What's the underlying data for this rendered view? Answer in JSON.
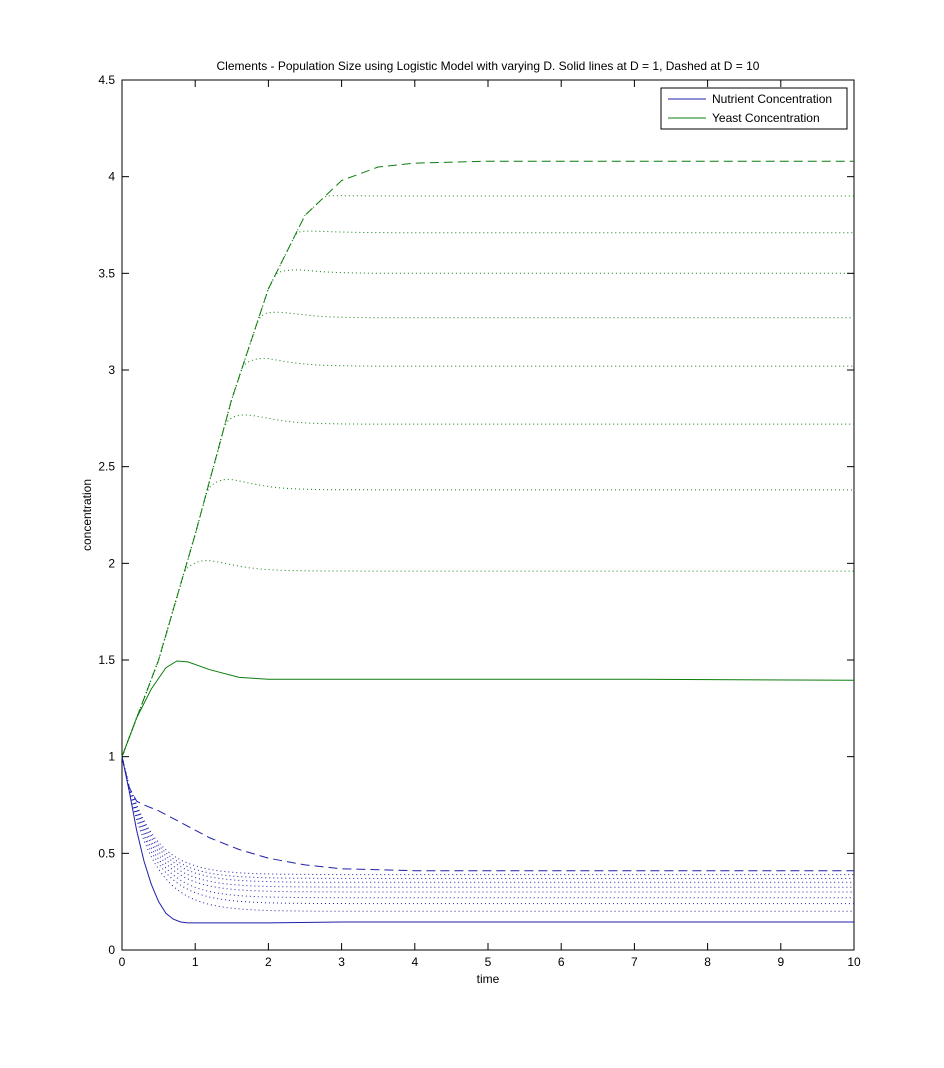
{
  "chart_data": {
    "type": "line",
    "title": "Clements - Population Size using Logistic Model with varying D. Solid lines at D = 1, Dashed at D = 10",
    "xlabel": "time",
    "ylabel": "concentration",
    "xlim": [
      0,
      10
    ],
    "ylim": [
      0,
      4.5
    ],
    "xticks": [
      "0",
      "1",
      "2",
      "3",
      "4",
      "5",
      "6",
      "7",
      "8",
      "9",
      "10"
    ],
    "yticks": [
      "0",
      "0.5",
      "1",
      "1.5",
      "2",
      "2.5",
      "3",
      "3.5",
      "4",
      "4.5"
    ],
    "grid": false,
    "legend_position": "top-right",
    "legend": [
      {
        "label": "Nutrient Concentration",
        "color": "#1f1fa8"
      },
      {
        "label": "Yeast Concentration",
        "color": "#0c7d0c"
      }
    ],
    "colors": {
      "nutrient": "#1f1fa8",
      "yeast": "#0c7d0c"
    },
    "series": [
      {
        "group": "yeast",
        "style": "solid",
        "D": 1,
        "x": [
          0,
          0.2,
          0.4,
          0.6,
          0.75,
          0.9,
          1.2,
          1.6,
          2,
          3,
          5,
          7,
          10
        ],
        "y": [
          1,
          1.2,
          1.35,
          1.46,
          1.495,
          1.49,
          1.45,
          1.41,
          1.4,
          1.4,
          1.4,
          1.4,
          1.395
        ]
      },
      {
        "group": "yeast",
        "style": "dotted",
        "D": 2,
        "plateau": 1.96
      },
      {
        "group": "yeast",
        "style": "dotted",
        "D": 3,
        "plateau": 2.38
      },
      {
        "group": "yeast",
        "style": "dotted",
        "D": 4,
        "plateau": 2.72
      },
      {
        "group": "yeast",
        "style": "dotted",
        "D": 5,
        "plateau": 3.02
      },
      {
        "group": "yeast",
        "style": "dotted",
        "D": 6,
        "plateau": 3.27
      },
      {
        "group": "yeast",
        "style": "dotted",
        "D": 7,
        "plateau": 3.5
      },
      {
        "group": "yeast",
        "style": "dotted",
        "D": 8,
        "plateau": 3.71
      },
      {
        "group": "yeast",
        "style": "dotted",
        "D": 9,
        "plateau": 3.9
      },
      {
        "group": "yeast",
        "style": "dashed",
        "D": 10,
        "x": [
          0,
          0.5,
          1,
          1.5,
          2,
          2.5,
          3,
          3.5,
          4,
          5,
          6,
          7,
          10
        ],
        "y": [
          1,
          1.5,
          2.15,
          2.85,
          3.42,
          3.8,
          3.98,
          4.05,
          4.07,
          4.08,
          4.08,
          4.08,
          4.08
        ]
      },
      {
        "group": "nutrient",
        "style": "solid",
        "D": 1,
        "x": [
          0,
          0.1,
          0.2,
          0.3,
          0.4,
          0.5,
          0.6,
          0.7,
          0.8,
          0.9,
          1.2,
          2,
          3,
          5,
          10
        ],
        "y": [
          1,
          0.82,
          0.62,
          0.46,
          0.34,
          0.25,
          0.19,
          0.16,
          0.145,
          0.14,
          0.14,
          0.14,
          0.145,
          0.145,
          0.145
        ]
      },
      {
        "group": "nutrient",
        "style": "dotted",
        "D": 2,
        "plateau": 0.2
      },
      {
        "group": "nutrient",
        "style": "dotted",
        "D": 3,
        "plateau": 0.24
      },
      {
        "group": "nutrient",
        "style": "dotted",
        "D": 4,
        "plateau": 0.27
      },
      {
        "group": "nutrient",
        "style": "dotted",
        "D": 5,
        "plateau": 0.3
      },
      {
        "group": "nutrient",
        "style": "dotted",
        "D": 6,
        "plateau": 0.325
      },
      {
        "group": "nutrient",
        "style": "dotted",
        "D": 7,
        "plateau": 0.35
      },
      {
        "group": "nutrient",
        "style": "dotted",
        "D": 8,
        "plateau": 0.37
      },
      {
        "group": "nutrient",
        "style": "dotted",
        "D": 9,
        "plateau": 0.39
      },
      {
        "group": "nutrient",
        "style": "dashed",
        "D": 10,
        "x": [
          0,
          0.1,
          0.2,
          0.3,
          0.5,
          0.8,
          1.2,
          1.6,
          2,
          2.5,
          3,
          4,
          6,
          10
        ],
        "y": [
          1,
          0.84,
          0.77,
          0.75,
          0.72,
          0.66,
          0.58,
          0.52,
          0.475,
          0.44,
          0.42,
          0.41,
          0.41,
          0.41
        ]
      }
    ]
  }
}
